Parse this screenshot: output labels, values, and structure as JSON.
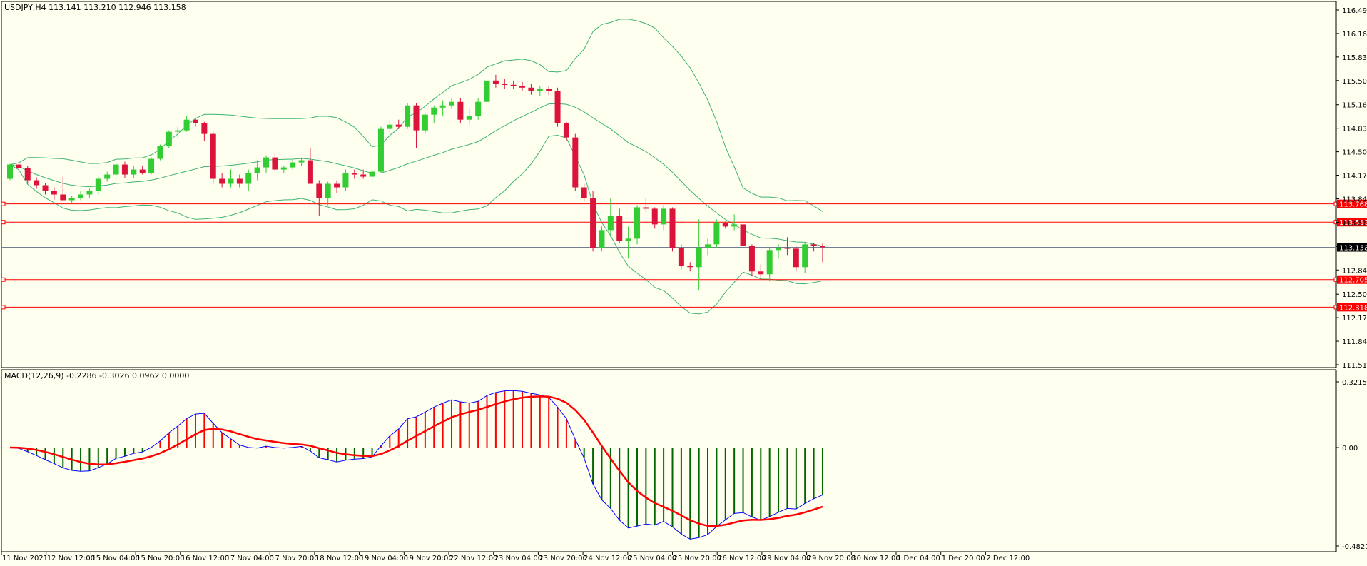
{
  "window": {
    "symbol_info": "USDJPY,H4  113.141 113.210 112.946 113.158",
    "macd_info": "MACD(12,26,9) -0.2286 -0.3026 0.0962 0.0000"
  },
  "colors": {
    "background": "#FFFFF0",
    "bull_candle": "#32CD32",
    "bear_candle": "#DC143C",
    "bollinger": "#3CB371",
    "level_line": "#FF0000",
    "bid_line": "#708090",
    "macd_main": "#0000FF",
    "macd_signal": "#FF0000",
    "hist_up": "#FF0000",
    "hist_down": "#006400"
  },
  "price_axis": {
    "ticks": [
      "116.490",
      "116.160",
      "115.830",
      "115.500",
      "115.160",
      "114.830",
      "114.500",
      "114.170",
      "113.840",
      "113.510",
      "113.170",
      "112.840",
      "112.500",
      "112.170",
      "111.840",
      "111.510"
    ],
    "range": [
      111.51,
      116.49
    ]
  },
  "macd_axis": {
    "ticks": [
      "0.3215",
      "0.00",
      "-0.4821"
    ],
    "range": [
      -0.4821,
      0.3215
    ]
  },
  "time_axis": {
    "labels": [
      "11 Nov 2021",
      "12 Nov 12:00",
      "15 Nov 04:00",
      "15 Nov 20:00",
      "16 Nov 12:00",
      "17 Nov 04:00",
      "17 Nov 20:00",
      "18 Nov 12:00",
      "19 Nov 04:00",
      "19 Nov 20:00",
      "22 Nov 12:00",
      "23 Nov 04:00",
      "23 Nov 20:00",
      "24 Nov 12:00",
      "25 Nov 04:00",
      "25 Nov 20:00",
      "26 Nov 12:00",
      "29 Nov 04:00",
      "29 Nov 20:00",
      "30 Nov 12:00",
      "1 Dec 04:00",
      "1 Dec 20:00",
      "2 Dec 12:00"
    ]
  },
  "levels": [
    {
      "price": 113.768,
      "label": "113.768",
      "color": "#FF0000"
    },
    {
      "price": 113.512,
      "label": "113.512",
      "color": "#FF0000"
    },
    {
      "price": 112.705,
      "label": "112.705",
      "color": "#FF0000"
    },
    {
      "price": 112.318,
      "label": "112.318",
      "color": "#FF0000"
    }
  ],
  "bid": {
    "price": 113.158,
    "label": "113.158"
  },
  "chart_data": {
    "type": "candlestick",
    "candles": [
      [
        114.12,
        114.33,
        114.1,
        114.32
      ],
      [
        114.32,
        114.35,
        114.25,
        114.27
      ],
      [
        114.27,
        114.3,
        114.05,
        114.1
      ],
      [
        114.1,
        114.14,
        113.98,
        114.03
      ],
      [
        114.03,
        114.06,
        113.9,
        113.95
      ],
      [
        113.95,
        114.0,
        113.83,
        113.9
      ],
      [
        113.9,
        114.15,
        113.8,
        113.82
      ],
      [
        113.82,
        113.88,
        113.78,
        113.85
      ],
      [
        113.85,
        113.95,
        113.82,
        113.9
      ],
      [
        113.9,
        113.98,
        113.85,
        113.95
      ],
      [
        113.95,
        114.15,
        113.9,
        114.12
      ],
      [
        114.12,
        114.22,
        114.08,
        114.18
      ],
      [
        114.18,
        114.35,
        114.1,
        114.32
      ],
      [
        114.32,
        114.36,
        114.13,
        114.18
      ],
      [
        114.18,
        114.3,
        114.13,
        114.25
      ],
      [
        114.25,
        114.3,
        114.18,
        114.2
      ],
      [
        114.2,
        114.42,
        114.18,
        114.4
      ],
      [
        114.4,
        114.6,
        114.38,
        114.58
      ],
      [
        114.58,
        114.8,
        114.55,
        114.78
      ],
      [
        114.78,
        114.85,
        114.7,
        114.8
      ],
      [
        114.8,
        115.0,
        114.78,
        114.95
      ],
      [
        114.95,
        114.98,
        114.85,
        114.9
      ],
      [
        114.9,
        114.92,
        114.65,
        114.75
      ],
      [
        114.75,
        114.78,
        114.05,
        114.12
      ],
      [
        114.12,
        114.2,
        114.0,
        114.05
      ],
      [
        114.05,
        114.25,
        114.0,
        114.12
      ],
      [
        114.12,
        114.18,
        114.0,
        114.05
      ],
      [
        114.05,
        114.25,
        113.95,
        114.2
      ],
      [
        114.2,
        114.38,
        114.1,
        114.28
      ],
      [
        114.28,
        114.45,
        114.2,
        114.42
      ],
      [
        114.42,
        114.48,
        114.22,
        114.25
      ],
      [
        114.25,
        114.3,
        114.2,
        114.28
      ],
      [
        114.28,
        114.4,
        114.25,
        114.35
      ],
      [
        114.35,
        114.42,
        114.3,
        114.38
      ],
      [
        114.38,
        114.55,
        114.05,
        114.05
      ],
      [
        114.05,
        114.1,
        113.6,
        113.85
      ],
      [
        113.85,
        114.08,
        113.75,
        114.05
      ],
      [
        114.05,
        114.1,
        113.92,
        114.0
      ],
      [
        114.0,
        114.25,
        113.95,
        114.2
      ],
      [
        114.2,
        114.25,
        114.12,
        114.18
      ],
      [
        114.18,
        114.25,
        114.12,
        114.15
      ],
      [
        114.15,
        114.25,
        114.1,
        114.22
      ],
      [
        114.22,
        114.85,
        114.2,
        114.82
      ],
      [
        114.82,
        114.95,
        114.75,
        114.88
      ],
      [
        114.88,
        114.95,
        114.82,
        114.85
      ],
      [
        114.85,
        115.18,
        114.82,
        115.15
      ],
      [
        115.15,
        115.18,
        114.55,
        114.8
      ],
      [
        114.8,
        115.05,
        114.75,
        115.02
      ],
      [
        115.02,
        115.15,
        114.9,
        115.12
      ],
      [
        115.12,
        115.22,
        115.0,
        115.15
      ],
      [
        115.15,
        115.25,
        115.1,
        115.2
      ],
      [
        115.2,
        115.25,
        114.9,
        114.95
      ],
      [
        114.95,
        115.1,
        114.88,
        115.0
      ],
      [
        115.0,
        115.25,
        114.95,
        115.2
      ],
      [
        115.2,
        115.52,
        115.18,
        115.5
      ],
      [
        115.5,
        115.58,
        115.4,
        115.45
      ],
      [
        115.45,
        115.52,
        115.38,
        115.44
      ],
      [
        115.44,
        115.5,
        115.38,
        115.42
      ],
      [
        115.42,
        115.48,
        115.35,
        115.4
      ],
      [
        115.4,
        115.45,
        115.3,
        115.35
      ],
      [
        115.35,
        115.42,
        115.28,
        115.38
      ],
      [
        115.38,
        115.42,
        115.3,
        115.35
      ],
      [
        115.35,
        115.4,
        114.85,
        114.9
      ],
      [
        114.9,
        114.92,
        114.65,
        114.7
      ],
      [
        114.7,
        114.75,
        113.95,
        114.0
      ],
      [
        114.0,
        114.05,
        113.8,
        113.85
      ],
      [
        113.85,
        113.95,
        113.1,
        113.15
      ],
      [
        113.15,
        113.45,
        113.1,
        113.4
      ],
      [
        113.4,
        113.85,
        113.3,
        113.6
      ],
      [
        113.6,
        113.7,
        113.22,
        113.25
      ],
      [
        113.25,
        113.45,
        113.0,
        113.28
      ],
      [
        113.28,
        113.75,
        113.2,
        113.72
      ],
      [
        113.72,
        113.85,
        113.65,
        113.7
      ],
      [
        113.7,
        113.72,
        113.42,
        113.48
      ],
      [
        113.48,
        113.75,
        113.4,
        113.7
      ],
      [
        113.7,
        113.72,
        113.1,
        113.15
      ],
      [
        113.15,
        113.2,
        112.85,
        112.9
      ],
      [
        112.9,
        112.95,
        112.82,
        112.88
      ],
      [
        112.88,
        113.55,
        112.55,
        113.15
      ],
      [
        113.15,
        113.28,
        113.05,
        113.2
      ],
      [
        113.2,
        113.55,
        113.15,
        113.5
      ],
      [
        113.5,
        113.52,
        113.42,
        113.45
      ],
      [
        113.45,
        113.62,
        113.4,
        113.48
      ],
      [
        113.48,
        113.5,
        113.12,
        113.18
      ],
      [
        113.18,
        113.2,
        112.75,
        112.82
      ],
      [
        112.82,
        112.92,
        112.7,
        112.78
      ],
      [
        112.78,
        113.15,
        112.68,
        113.12
      ],
      [
        113.12,
        113.2,
        113.0,
        113.15
      ],
      [
        113.15,
        113.3,
        113.05,
        113.14
      ],
      [
        113.14,
        113.18,
        112.82,
        112.88
      ],
      [
        112.88,
        113.22,
        112.8,
        113.2
      ],
      [
        113.2,
        113.22,
        113.1,
        113.18
      ],
      [
        113.18,
        113.21,
        112.95,
        113.16
      ]
    ]
  }
}
